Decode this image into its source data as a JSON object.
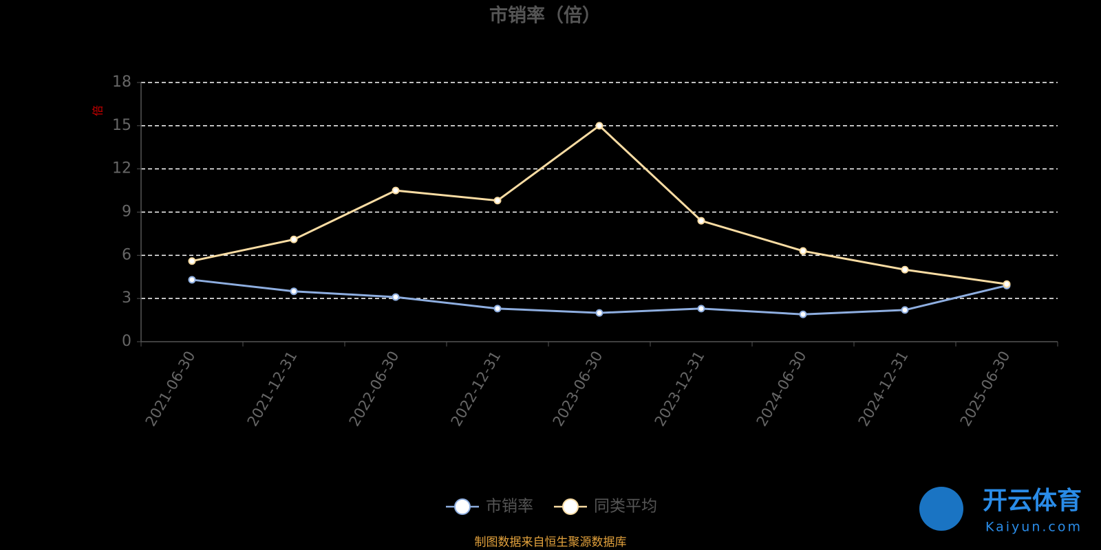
{
  "chart_data": {
    "type": "line",
    "title": "市销率（倍）",
    "y_label": "倍",
    "categories": [
      "2021-06-30",
      "2021-12-31",
      "2022-06-30",
      "2022-12-31",
      "2023-06-30",
      "2023-12-31",
      "2024-06-30",
      "2024-12-31",
      "2025-06-30"
    ],
    "series": [
      {
        "name": "市销率",
        "color": "#8eaee0",
        "values": [
          4.3,
          3.5,
          3.1,
          2.3,
          2.0,
          2.3,
          1.9,
          2.2,
          3.9
        ]
      },
      {
        "name": "同类平均",
        "color": "#f9dca3",
        "values": [
          5.6,
          7.1,
          10.5,
          9.8,
          15.0,
          8.4,
          6.3,
          5.0,
          4.0
        ]
      }
    ],
    "ylim": [
      0,
      18
    ],
    "yticks": [
      0,
      3,
      6,
      9,
      12,
      15,
      18
    ],
    "grid": true,
    "legend": "bottom",
    "source": "制图数据来自恒生聚源数据库",
    "watermark": {
      "brand": "开云体育",
      "site": "Kaiyun.com"
    }
  }
}
